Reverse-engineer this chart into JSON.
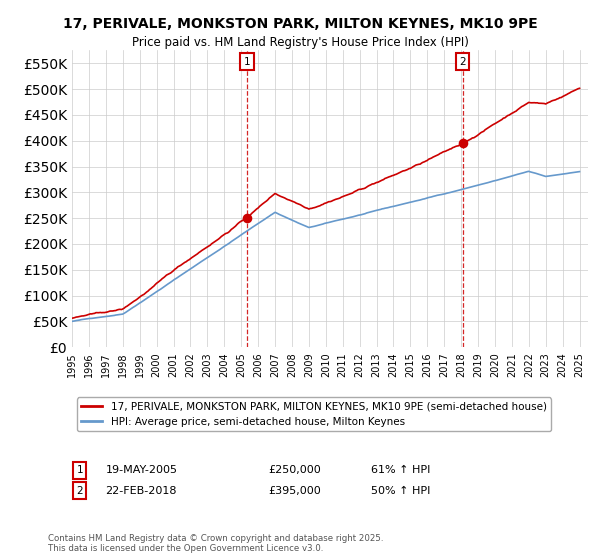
{
  "title": "17, PERIVALE, MONKSTON PARK, MILTON KEYNES, MK10 9PE",
  "subtitle": "Price paid vs. HM Land Registry's House Price Index (HPI)",
  "legend_label_red": "17, PERIVALE, MONKSTON PARK, MILTON KEYNES, MK10 9PE (semi-detached house)",
  "legend_label_blue": "HPI: Average price, semi-detached house, Milton Keynes",
  "transaction1_date": "19-MAY-2005",
  "transaction1_price": 250000,
  "transaction1_hpi": "61% ↑ HPI",
  "transaction2_date": "22-FEB-2018",
  "transaction2_price": 395000,
  "transaction2_hpi": "50% ↑ HPI",
  "footnote": "Contains HM Land Registry data © Crown copyright and database right 2025.\nThis data is licensed under the Open Government Licence v3.0.",
  "red_color": "#cc0000",
  "blue_color": "#6699cc",
  "background_color": "#ffffff",
  "grid_color": "#cccccc",
  "ylim": [
    0,
    575000
  ],
  "yticks": [
    0,
    50000,
    100000,
    150000,
    200000,
    250000,
    300000,
    350000,
    400000,
    450000,
    500000,
    550000
  ]
}
